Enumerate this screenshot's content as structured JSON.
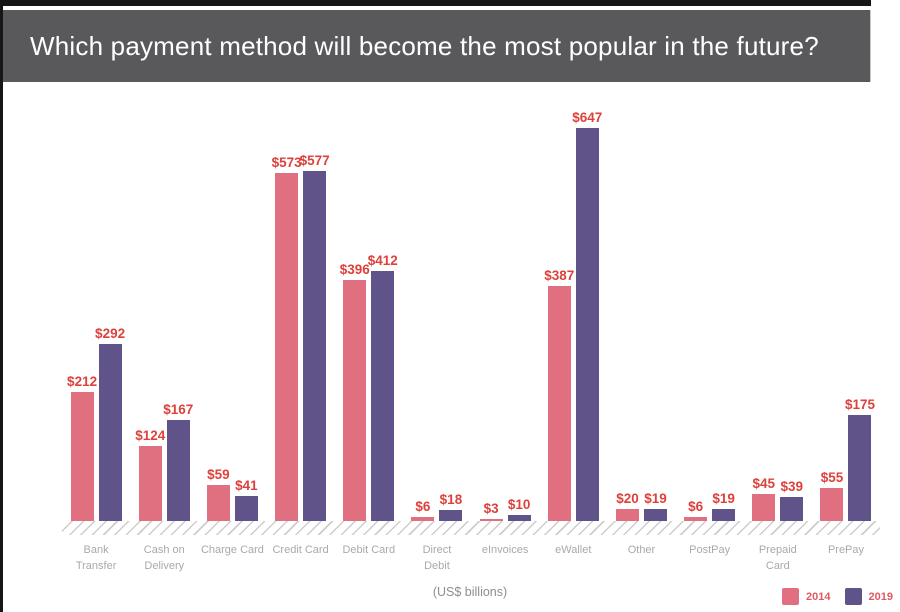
{
  "header": {
    "title": "Which payment method will become the most popular in the future?",
    "bg_color": "#59595B",
    "text_color": "#FFFFFF"
  },
  "chart_data": {
    "type": "bar",
    "title": "Which payment method will become the most popular in the future?",
    "categories": [
      "Bank Transfer",
      "Cash on Delivery",
      "Charge Card",
      "Credit Card",
      "Debit Card",
      "Direct Debit",
      "eInvoices",
      "eWallet",
      "Other",
      "PostPay",
      "Prepaid Card",
      "PrePay"
    ],
    "category_display_lines": [
      [
        "Bank",
        "Transfer"
      ],
      [
        "Cash on",
        "Delivery"
      ],
      [
        "Charge Card"
      ],
      [
        "Credit Card"
      ],
      [
        "Debit Card"
      ],
      [
        "Direct",
        "Debit"
      ],
      [
        "eInvoices"
      ],
      [
        "eWallet"
      ],
      [
        "Other"
      ],
      [
        "PostPay"
      ],
      [
        "Prepaid",
        "Card"
      ],
      [
        "PrePay"
      ]
    ],
    "series": [
      {
        "name": "2014",
        "color": "#E07080",
        "values": [
          212,
          124,
          59,
          573,
          396,
          6,
          3,
          387,
          20,
          6,
          45,
          55
        ]
      },
      {
        "name": "2019",
        "color": "#5F5389",
        "values": [
          292,
          167,
          41,
          577,
          412,
          18,
          10,
          647,
          19,
          19,
          39,
          175
        ]
      }
    ],
    "value_prefix": "$",
    "value_label_color": "#DE413C",
    "ylim": [
      0,
      660
    ],
    "grid": false,
    "xlabel": "(US$ billions)",
    "ylabel": "",
    "legend_position": "bottom-right",
    "units_note": "(US$ billions)"
  },
  "footer": {
    "units_label": "(US$ billions)",
    "legend_text_color": "#E25860",
    "legend": [
      {
        "label": "2014",
        "color": "#E07080"
      },
      {
        "label": "2019",
        "color": "#5F5389"
      }
    ]
  }
}
